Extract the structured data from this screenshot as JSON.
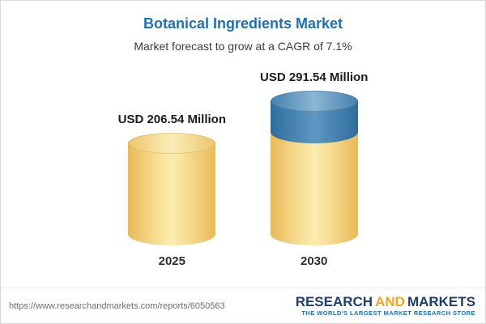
{
  "chart_data": {
    "type": "bar",
    "bar_style": "cylinder-3d",
    "title": "Botanical Ingredients Market",
    "subtitle": "Market forecast to grow at a CAGR of 7.1%",
    "cagr_percent": 7.1,
    "unit": "USD Million",
    "categories": [
      "2025",
      "2030"
    ],
    "values": [
      206.54,
      291.54
    ],
    "ylim": [
      0,
      300
    ],
    "grid": false,
    "legend": false,
    "bars": [
      {
        "category": "2025",
        "value": 206.54,
        "label": "USD 206.54 Million",
        "segments": [
          {
            "name": "base",
            "value": 206.54,
            "color": "#f6d57e"
          }
        ]
      },
      {
        "category": "2030",
        "value": 291.54,
        "label": "USD 291.54 Million",
        "segments": [
          {
            "name": "base",
            "value": 206.54,
            "color": "#f6d57e"
          },
          {
            "name": "growth",
            "value": 85.0,
            "color": "#3c7cad"
          }
        ]
      }
    ]
  },
  "footer": {
    "url": "https://www.researchandmarkets.com/reports/6050563",
    "brand": {
      "word1": "RESEARCH",
      "word2": "AND",
      "word3": "MARKETS",
      "tagline": "THE WORLD'S LARGEST MARKET RESEARCH STORE"
    }
  },
  "colors": {
    "title_blue": "#1d70b7",
    "bar_yellow": "#f6d57e",
    "bar_yellow_edge": "#e7ba56",
    "bar_blue": "#3c7cad",
    "logo_navy": "#1c3f6e",
    "logo_orange": "#f2a51c",
    "tagline_blue": "#1d70b7",
    "url_gray": "#6e6e6e"
  }
}
